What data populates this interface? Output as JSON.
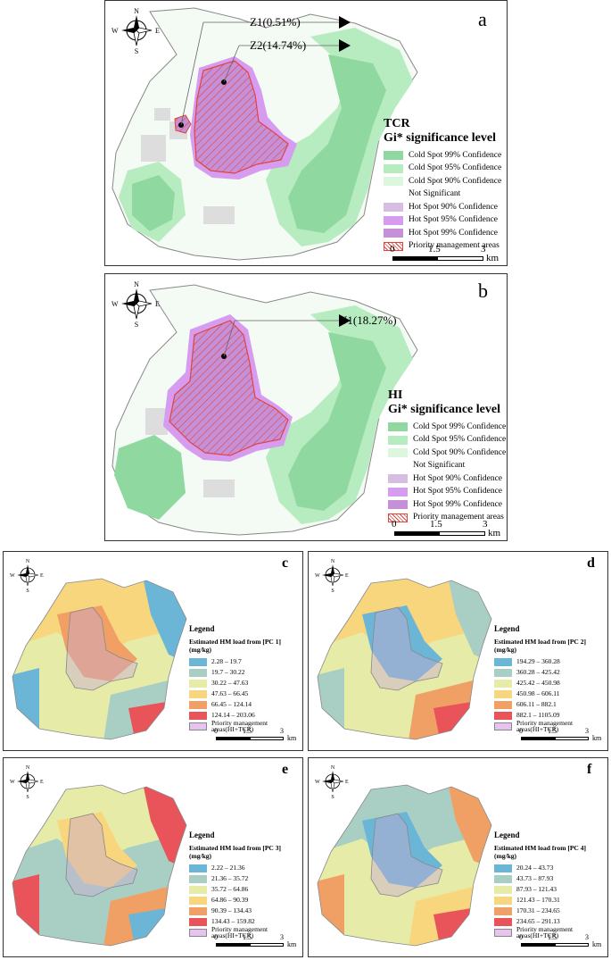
{
  "panels": {
    "a": {
      "letter": "a",
      "callouts": [
        "Z1(0.51%)",
        "Z2(14.74%)"
      ],
      "legend": {
        "title1": "TCR",
        "title2": "Gi* significance level",
        "items": [
          {
            "label": "Cold Spot 99% Confidence",
            "color": "#8fd9a0"
          },
          {
            "label": "Cold Spot 95% Confidence",
            "color": "#b7ebc0"
          },
          {
            "label": "Cold Spot 90% Confidence",
            "color": "#ddf7df"
          },
          {
            "label": "Not Significant",
            "color": ""
          },
          {
            "label": "Hot Spot 90% Confidence",
            "color": "#d7bde2"
          },
          {
            "label": "Hot Spot 95% Confidence",
            "color": "#d59cf0"
          },
          {
            "label": "Hot Spot 99% Confidence",
            "color": "#c690d8"
          },
          {
            "label": "Priority management areas",
            "color": "hatch"
          }
        ]
      },
      "scale": {
        "t0": "0",
        "t1": "1.5",
        "t2": "3",
        "unit": "km"
      }
    },
    "b": {
      "letter": "b",
      "callouts": [
        "Y1(18.27%)"
      ],
      "legend": {
        "title1": "HI",
        "title2": "Gi* significance level",
        "items": [
          {
            "label": "Cold Spot 99% Confidence",
            "color": "#8fd9a0"
          },
          {
            "label": "Cold Spot 95% Confidence",
            "color": "#b7ebc0"
          },
          {
            "label": "Cold Spot 90% Confidence",
            "color": "#ddf7df"
          },
          {
            "label": "Not Significant",
            "color": ""
          },
          {
            "label": "Hot Spot 90% Confidence",
            "color": "#d7bde2"
          },
          {
            "label": "Hot Spot 95% Confidence",
            "color": "#d59cf0"
          },
          {
            "label": "Hot Spot 99% Confidence",
            "color": "#c690d8"
          },
          {
            "label": "Priority management areas",
            "color": "hatch"
          }
        ]
      },
      "scale": {
        "t0": "0",
        "t1": "1.5",
        "t2": "3",
        "unit": "km"
      }
    },
    "c": {
      "letter": "c",
      "legend": {
        "title": "Legend",
        "sub": "Estimated HM load from [PC 1] (mg/kg)",
        "items": [
          {
            "label": "2.28 – 19.7",
            "color": "#6bb6d6"
          },
          {
            "label": "19.7 – 30.22",
            "color": "#a9cfc4"
          },
          {
            "label": "30.22 – 47.63",
            "color": "#e6eba8"
          },
          {
            "label": "47.63 – 66.45",
            "color": "#f8d67e"
          },
          {
            "label": "66.45 – 124.14",
            "color": "#f0a064"
          },
          {
            "label": "124.14 – 203.06",
            "color": "#e8545a"
          },
          {
            "label": "Priority management areas(HI+TCR)",
            "color": "#e6c4ee"
          }
        ]
      },
      "scale": {
        "t0": "0",
        "t1": "1.5",
        "t2": "3",
        "unit": "km"
      }
    },
    "d": {
      "letter": "d",
      "legend": {
        "title": "Legend",
        "sub": "Estimated HM load from [PC 2] (mg/kg)",
        "items": [
          {
            "label": "194.29 – 360.28",
            "color": "#6bb6d6"
          },
          {
            "label": "360.28 – 425.42",
            "color": "#a9cfc4"
          },
          {
            "label": "425.42 – 450.98",
            "color": "#e6eba8"
          },
          {
            "label": "450.98 – 606.11",
            "color": "#f8d67e"
          },
          {
            "label": "606.11 – 882.1",
            "color": "#f0a064"
          },
          {
            "label": "882.1 – 1105.09",
            "color": "#e8545a"
          },
          {
            "label": "Priority management areas(HI+TCR)",
            "color": "#e6c4ee"
          }
        ]
      },
      "scale": {
        "t0": "0",
        "t1": "1.5",
        "t2": "3",
        "unit": "km"
      }
    },
    "e": {
      "letter": "e",
      "legend": {
        "title": "Legend",
        "sub": "Estimated HM load from [PC 3] (mg/kg)",
        "items": [
          {
            "label": "2.22 – 21.36",
            "color": "#6bb6d6"
          },
          {
            "label": "21.36 – 35.72",
            "color": "#a9cfc4"
          },
          {
            "label": "35.72 – 64.86",
            "color": "#e6eba8"
          },
          {
            "label": "64.86 – 90.39",
            "color": "#f8d67e"
          },
          {
            "label": "90.39 – 134.43",
            "color": "#f0a064"
          },
          {
            "label": "134.43 – 159.82",
            "color": "#e8545a"
          },
          {
            "label": "Priority management areas(HI+TCR)",
            "color": "#e6c4ee"
          }
        ]
      },
      "scale": {
        "t0": "0",
        "t1": "1.5",
        "t2": "3",
        "unit": "km"
      }
    },
    "f": {
      "letter": "f",
      "legend": {
        "title": "Legend",
        "sub": "Estimated HM load from [PC 4] (mg/kg)",
        "items": [
          {
            "label": "20.24 – 43.73",
            "color": "#6bb6d6"
          },
          {
            "label": "43.73 – 87.93",
            "color": "#a9cfc4"
          },
          {
            "label": "87.93 – 121.43",
            "color": "#e6eba8"
          },
          {
            "label": "121.43 – 170.31",
            "color": "#f8d67e"
          },
          {
            "label": "170.31 – 234.65",
            "color": "#f0a064"
          },
          {
            "label": "234.65 – 291.13",
            "color": "#e8545a"
          },
          {
            "label": "Priority management areas(HI+TCR)",
            "color": "#e6c4ee"
          }
        ]
      },
      "scale": {
        "t0": "0",
        "t1": "1.5",
        "t2": "3",
        "unit": "km"
      }
    }
  },
  "compass": {
    "n": "N",
    "s": "S",
    "e": "E",
    "w": "W"
  }
}
